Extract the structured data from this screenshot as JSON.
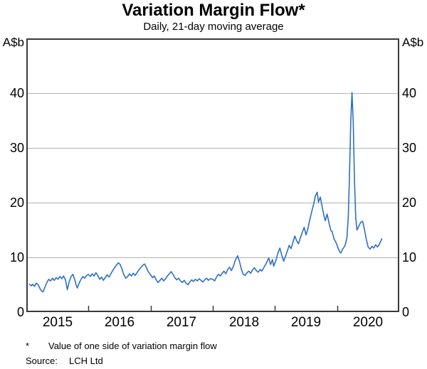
{
  "header": {
    "title": "Variation Margin Flow*",
    "subtitle": "Daily, 21-day moving average"
  },
  "axes": {
    "left_unit": "A$b",
    "right_unit": "A$b"
  },
  "footnotes": {
    "asterisk": "*",
    "note": "Value of one side of variation margin flow",
    "source_label": "Source:",
    "source_value": "LCH Ltd"
  },
  "colors": {
    "line": "#2d6fc4",
    "grid": "#b3b3b3",
    "frame": "#3a3a3a",
    "text": "#000000",
    "background": "#ffffff"
  },
  "chart_data": {
    "type": "line",
    "title": "Variation Margin Flow*",
    "subtitle": "Daily, 21-day moving average",
    "ylabel": "A$b",
    "xlabel": "",
    "xlim": [
      2015,
      2021
    ],
    "ylim": [
      0,
      50
    ],
    "yticks": [
      0,
      10,
      20,
      30,
      40
    ],
    "ytick_labels": [
      "0",
      "10",
      "20",
      "30",
      "40"
    ],
    "year_boundary_ticks": [
      2016,
      2017,
      2018,
      2019,
      2020
    ],
    "xtick_labels": [
      {
        "label": "2015",
        "center": 2015.5
      },
      {
        "label": "2016",
        "center": 2016.5
      },
      {
        "label": "2017",
        "center": 2017.5
      },
      {
        "label": "2018",
        "center": 2018.5
      },
      {
        "label": "2019",
        "center": 2019.5
      },
      {
        "label": "2020",
        "center": 2020.5
      }
    ],
    "grid": "horizontal",
    "legend": "none",
    "series": [
      {
        "name": "Variation margin flow (daily, 21-day moving average)",
        "color": "#2d6fc4",
        "points": [
          [
            2015.05,
            5.1
          ],
          [
            2015.08,
            4.8
          ],
          [
            2015.1,
            5.1
          ],
          [
            2015.13,
            4.7
          ],
          [
            2015.16,
            5.3
          ],
          [
            2015.19,
            5.0
          ],
          [
            2015.22,
            4.3
          ],
          [
            2015.25,
            3.8
          ],
          [
            2015.27,
            3.7
          ],
          [
            2015.3,
            4.6
          ],
          [
            2015.33,
            5.4
          ],
          [
            2015.36,
            6.0
          ],
          [
            2015.39,
            5.7
          ],
          [
            2015.42,
            6.2
          ],
          [
            2015.45,
            5.8
          ],
          [
            2015.48,
            6.3
          ],
          [
            2015.51,
            6.0
          ],
          [
            2015.54,
            6.5
          ],
          [
            2015.57,
            6.1
          ],
          [
            2015.6,
            6.6
          ],
          [
            2015.63,
            5.9
          ],
          [
            2015.66,
            4.1
          ],
          [
            2015.69,
            5.6
          ],
          [
            2015.72,
            6.5
          ],
          [
            2015.75,
            6.9
          ],
          [
            2015.78,
            5.9
          ],
          [
            2015.8,
            5.0
          ],
          [
            2015.82,
            4.4
          ],
          [
            2015.85,
            5.3
          ],
          [
            2015.88,
            6.0
          ],
          [
            2015.91,
            6.5
          ],
          [
            2015.94,
            6.2
          ],
          [
            2015.97,
            6.7
          ],
          [
            2016.0,
            6.9
          ],
          [
            2016.03,
            6.5
          ],
          [
            2016.06,
            7.0
          ],
          [
            2016.09,
            6.6
          ],
          [
            2016.12,
            7.2
          ],
          [
            2016.15,
            6.7
          ],
          [
            2016.18,
            6.0
          ],
          [
            2016.21,
            6.4
          ],
          [
            2016.24,
            5.8
          ],
          [
            2016.27,
            6.3
          ],
          [
            2016.3,
            6.8
          ],
          [
            2016.33,
            6.4
          ],
          [
            2016.36,
            7.0
          ],
          [
            2016.39,
            7.6
          ],
          [
            2016.42,
            8.1
          ],
          [
            2016.45,
            8.6
          ],
          [
            2016.48,
            9.0
          ],
          [
            2016.51,
            8.7
          ],
          [
            2016.54,
            7.8
          ],
          [
            2016.57,
            6.8
          ],
          [
            2016.6,
            6.2
          ],
          [
            2016.63,
            6.5
          ],
          [
            2016.66,
            7.0
          ],
          [
            2016.69,
            6.6
          ],
          [
            2016.72,
            7.1
          ],
          [
            2016.75,
            6.7
          ],
          [
            2016.78,
            7.2
          ],
          [
            2016.81,
            7.7
          ],
          [
            2016.84,
            8.1
          ],
          [
            2016.87,
            8.5
          ],
          [
            2016.9,
            8.8
          ],
          [
            2016.93,
            8.2
          ],
          [
            2016.96,
            7.4
          ],
          [
            2017.0,
            6.8
          ],
          [
            2017.03,
            6.3
          ],
          [
            2017.06,
            6.6
          ],
          [
            2017.09,
            5.9
          ],
          [
            2017.12,
            5.4
          ],
          [
            2017.15,
            5.8
          ],
          [
            2017.18,
            6.2
          ],
          [
            2017.21,
            5.7
          ],
          [
            2017.24,
            6.1
          ],
          [
            2017.27,
            6.6
          ],
          [
            2017.3,
            7.0
          ],
          [
            2017.33,
            7.4
          ],
          [
            2017.36,
            6.9
          ],
          [
            2017.39,
            6.3
          ],
          [
            2017.42,
            5.9
          ],
          [
            2017.45,
            6.2
          ],
          [
            2017.48,
            5.7
          ],
          [
            2017.51,
            5.4
          ],
          [
            2017.54,
            5.8
          ],
          [
            2017.57,
            5.3
          ],
          [
            2017.6,
            5.0
          ],
          [
            2017.63,
            5.5
          ],
          [
            2017.66,
            5.9
          ],
          [
            2017.69,
            5.6
          ],
          [
            2017.72,
            6.0
          ],
          [
            2017.75,
            5.7
          ],
          [
            2017.78,
            6.1
          ],
          [
            2017.81,
            5.8
          ],
          [
            2017.84,
            5.5
          ],
          [
            2017.87,
            5.9
          ],
          [
            2017.9,
            6.2
          ],
          [
            2017.93,
            5.8
          ],
          [
            2017.96,
            6.1
          ],
          [
            2018.0,
            6.0
          ],
          [
            2018.03,
            5.7
          ],
          [
            2018.06,
            6.4
          ],
          [
            2018.09,
            6.9
          ],
          [
            2018.12,
            6.6
          ],
          [
            2018.15,
            7.1
          ],
          [
            2018.18,
            7.5
          ],
          [
            2018.21,
            7.0
          ],
          [
            2018.24,
            7.8
          ],
          [
            2018.27,
            8.2
          ],
          [
            2018.3,
            7.6
          ],
          [
            2018.33,
            8.3
          ],
          [
            2018.36,
            9.4
          ],
          [
            2018.4,
            10.3
          ],
          [
            2018.43,
            9.2
          ],
          [
            2018.46,
            7.8
          ],
          [
            2018.49,
            6.9
          ],
          [
            2018.52,
            6.7
          ],
          [
            2018.55,
            7.2
          ],
          [
            2018.58,
            7.5
          ],
          [
            2018.61,
            7.1
          ],
          [
            2018.64,
            7.7
          ],
          [
            2018.67,
            8.1
          ],
          [
            2018.7,
            7.6
          ],
          [
            2018.73,
            7.3
          ],
          [
            2018.76,
            7.8
          ],
          [
            2018.79,
            7.5
          ],
          [
            2018.82,
            8.1
          ],
          [
            2018.85,
            8.7
          ],
          [
            2018.88,
            9.4
          ],
          [
            2018.9,
            9.9
          ],
          [
            2018.93,
            8.7
          ],
          [
            2018.96,
            9.6
          ],
          [
            2018.98,
            8.4
          ],
          [
            2019.02,
            9.6
          ],
          [
            2019.05,
            10.9
          ],
          [
            2019.08,
            11.7
          ],
          [
            2019.11,
            10.4
          ],
          [
            2019.14,
            9.3
          ],
          [
            2019.17,
            10.2
          ],
          [
            2019.2,
            11.2
          ],
          [
            2019.23,
            12.2
          ],
          [
            2019.26,
            11.6
          ],
          [
            2019.29,
            12.8
          ],
          [
            2019.32,
            13.9
          ],
          [
            2019.35,
            13.0
          ],
          [
            2019.38,
            12.5
          ],
          [
            2019.41,
            13.6
          ],
          [
            2019.44,
            14.6
          ],
          [
            2019.47,
            15.5
          ],
          [
            2019.5,
            14.1
          ],
          [
            2019.53,
            15.2
          ],
          [
            2019.56,
            16.8
          ],
          [
            2019.59,
            18.3
          ],
          [
            2019.62,
            19.6
          ],
          [
            2019.65,
            21.2
          ],
          [
            2019.68,
            21.9
          ],
          [
            2019.7,
            20.1
          ],
          [
            2019.73,
            21.0
          ],
          [
            2019.76,
            19.2
          ],
          [
            2019.79,
            17.6
          ],
          [
            2019.81,
            16.7
          ],
          [
            2019.84,
            17.9
          ],
          [
            2019.87,
            16.3
          ],
          [
            2019.9,
            14.9
          ],
          [
            2019.92,
            14.7
          ],
          [
            2019.95,
            13.4
          ],
          [
            2019.98,
            12.8
          ],
          [
            2020.01,
            11.9
          ],
          [
            2020.04,
            11.0
          ],
          [
            2020.06,
            10.8
          ],
          [
            2020.09,
            11.5
          ],
          [
            2020.12,
            12.0
          ],
          [
            2020.14,
            12.6
          ],
          [
            2020.16,
            13.8
          ],
          [
            2020.18,
            17.5
          ],
          [
            2020.2,
            25.0
          ],
          [
            2020.22,
            35.0
          ],
          [
            2020.24,
            40.1
          ],
          [
            2020.26,
            34.5
          ],
          [
            2020.28,
            24.0
          ],
          [
            2020.3,
            17.2
          ],
          [
            2020.32,
            15.0
          ],
          [
            2020.35,
            15.7
          ],
          [
            2020.38,
            16.4
          ],
          [
            2020.41,
            16.6
          ],
          [
            2020.44,
            15.1
          ],
          [
            2020.47,
            13.3
          ],
          [
            2020.5,
            11.9
          ],
          [
            2020.53,
            11.5
          ],
          [
            2020.56,
            12.0
          ],
          [
            2020.59,
            11.7
          ],
          [
            2020.62,
            12.3
          ],
          [
            2020.65,
            11.9
          ],
          [
            2020.68,
            12.4
          ],
          [
            2020.7,
            12.9
          ],
          [
            2020.72,
            13.4
          ]
        ]
      }
    ]
  }
}
